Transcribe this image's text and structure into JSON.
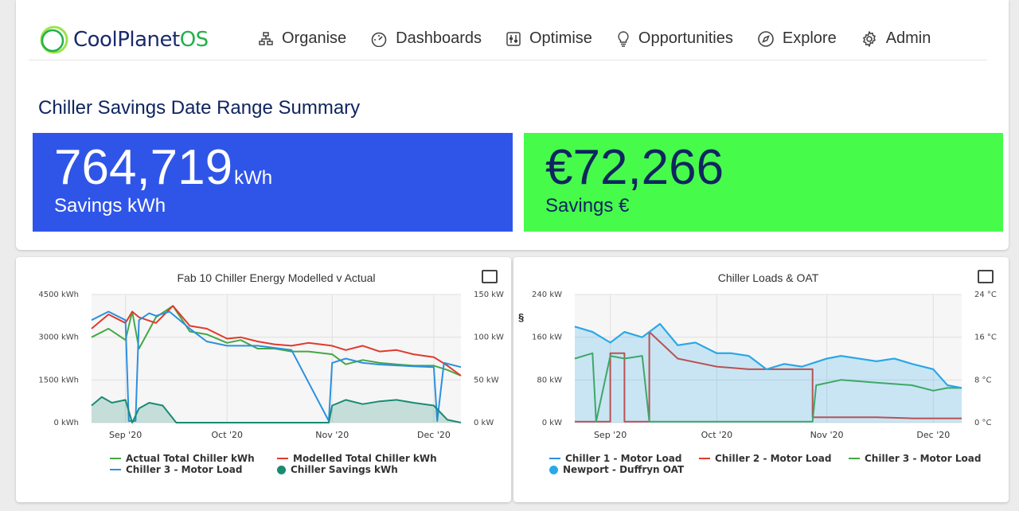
{
  "brand": {
    "name_part1": "CoolPlanet",
    "name_part2": "OS"
  },
  "nav": [
    {
      "label": "Organise",
      "icon": "sitemap-icon"
    },
    {
      "label": "Dashboards",
      "icon": "gauge-icon"
    },
    {
      "label": "Optimise",
      "icon": "sliders-icon"
    },
    {
      "label": "Opportunities",
      "icon": "lightbulb-icon"
    },
    {
      "label": "Explore",
      "icon": "compass-icon"
    },
    {
      "label": "Admin",
      "icon": "gear-icon"
    }
  ],
  "summary": {
    "title": "Chiller Savings Date Range Summary",
    "kwh": {
      "value": "764,719",
      "unit": "kWh",
      "label": "Savings kWh",
      "color": "#2f55e8"
    },
    "eur": {
      "value": "€72,266",
      "label": "Savings €",
      "color": "#47fb4b"
    }
  },
  "colors": {
    "green": "#43a843",
    "red": "#e03a2c",
    "blue": "#2c90e0",
    "teal": "#1a8a74",
    "oat": "#29a9e8"
  },
  "chart_left": {
    "legend": {
      "actual": "Actual Total Chiller kWh",
      "modelled": "Modelled Total Chiller kWh",
      "chiller3": "Chiller 3 - Motor Load",
      "savings": "Chiller Savings kWh"
    }
  },
  "chart_right": {
    "section_mark": "§",
    "legend": {
      "c1": "Chiller 1 - Motor Load",
      "c2": "Chiller 2 - Motor Load",
      "c3": "Chiller 3 - Motor Load",
      "oat": "Newport - Duffryn OAT"
    }
  },
  "chart_data": [
    {
      "type": "line",
      "title": "Fab 10 Chiller Energy Modelled v Actual",
      "x_ticks": [
        "Sep '20",
        "Oct '20",
        "Nov '20",
        "Dec '20"
      ],
      "x_range": [
        "2020-08-22",
        "2020-12-09"
      ],
      "y_left": {
        "ticks": [
          "0 kWh",
          "1500 kWh",
          "3000 kWh",
          "4500 kWh"
        ],
        "range": [
          0,
          4500
        ]
      },
      "y_right": {
        "ticks": [
          "0 kW",
          "50 kW",
          "100 kW",
          "150 kW"
        ],
        "range": [
          0,
          150
        ]
      },
      "grid": true,
      "legend_position": "bottom",
      "series": [
        {
          "name": "Actual Total Chiller kWh",
          "axis": "left",
          "color": "#43a843",
          "x": [
            "2020-08-22",
            "2020-08-27",
            "2020-09-01",
            "2020-09-03",
            "2020-09-05",
            "2020-09-10",
            "2020-09-15",
            "2020-09-20",
            "2020-09-25",
            "2020-10-01",
            "2020-10-05",
            "2020-10-10",
            "2020-10-15",
            "2020-10-20",
            "2020-10-25",
            "2020-11-01",
            "2020-11-05",
            "2020-11-10",
            "2020-11-15",
            "2020-11-20",
            "2020-11-25",
            "2020-12-01",
            "2020-12-05",
            "2020-12-09"
          ],
          "values": [
            3000,
            3300,
            2900,
            3900,
            2600,
            3700,
            4100,
            3200,
            3100,
            2800,
            2900,
            2600,
            2600,
            2500,
            2500,
            2400,
            2050,
            2200,
            2100,
            2050,
            2000,
            2000,
            1850,
            1650
          ]
        },
        {
          "name": "Modelled Total Chiller kWh",
          "axis": "left",
          "color": "#e03a2c",
          "x": [
            "2020-08-22",
            "2020-08-27",
            "2020-09-01",
            "2020-09-03",
            "2020-09-05",
            "2020-09-10",
            "2020-09-15",
            "2020-09-20",
            "2020-09-25",
            "2020-10-01",
            "2020-10-05",
            "2020-10-10",
            "2020-10-15",
            "2020-10-20",
            "2020-10-25",
            "2020-11-01",
            "2020-11-05",
            "2020-11-10",
            "2020-11-15",
            "2020-11-20",
            "2020-11-25",
            "2020-12-01",
            "2020-12-05",
            "2020-12-09"
          ],
          "values": [
            3300,
            3800,
            3500,
            3900,
            3700,
            3500,
            4100,
            3400,
            3300,
            2950,
            3000,
            2850,
            2750,
            2700,
            2800,
            2700,
            2550,
            2700,
            2500,
            2550,
            2400,
            2300,
            2000,
            1650
          ]
        },
        {
          "name": "Chiller 3 - Motor Load",
          "axis": "right",
          "color": "#2c90e0",
          "x": [
            "2020-08-22",
            "2020-08-27",
            "2020-09-01",
            "2020-09-02",
            "2020-09-04",
            "2020-09-05",
            "2020-09-08",
            "2020-09-10",
            "2020-09-14",
            "2020-09-20",
            "2020-09-25",
            "2020-10-01",
            "2020-10-10",
            "2020-10-20",
            "2020-10-31",
            "2020-11-01",
            "2020-11-05",
            "2020-11-10",
            "2020-11-15",
            "2020-11-20",
            "2020-11-25",
            "2020-12-01",
            "2020-12-02",
            "2020-12-04",
            "2020-12-09"
          ],
          "values": [
            120,
            130,
            120,
            2,
            2,
            120,
            128,
            125,
            130,
            110,
            95,
            90,
            90,
            85,
            2,
            70,
            75,
            70,
            68,
            67,
            66,
            65,
            2,
            70,
            65
          ]
        },
        {
          "name": "Chiller Savings kWh",
          "axis": "left",
          "color": "#1a8a74",
          "x": [
            "2020-08-22",
            "2020-08-25",
            "2020-08-28",
            "2020-09-01",
            "2020-09-03",
            "2020-09-05",
            "2020-09-08",
            "2020-09-12",
            "2020-09-16",
            "2020-09-20",
            "2020-09-25",
            "2020-10-01",
            "2020-10-10",
            "2020-10-20",
            "2020-10-31",
            "2020-11-01",
            "2020-11-05",
            "2020-11-10",
            "2020-11-15",
            "2020-11-20",
            "2020-11-25",
            "2020-12-01",
            "2020-12-05",
            "2020-12-09"
          ],
          "values": [
            600,
            900,
            700,
            800,
            0,
            500,
            700,
            600,
            0,
            0,
            0,
            0,
            0,
            0,
            0,
            600,
            800,
            650,
            750,
            800,
            700,
            600,
            100,
            0
          ]
        }
      ]
    },
    {
      "type": "line",
      "title": "Chiller Loads & OAT",
      "x_ticks": [
        "Sep '20",
        "Oct '20",
        "Nov '20",
        "Dec '20"
      ],
      "x_range": [
        "2020-08-22",
        "2020-12-09"
      ],
      "y_left": {
        "ticks": [
          "0 kW",
          "80 kW",
          "160 kW",
          "240 kW"
        ],
        "range": [
          0,
          240
        ]
      },
      "y_right": {
        "ticks": [
          "0 °C",
          "8 °C",
          "16 °C",
          "24 °C"
        ],
        "range": [
          0,
          24
        ]
      },
      "grid": true,
      "legend_position": "bottom",
      "series": [
        {
          "name": "Chiller 1 - Motor Load",
          "axis": "left",
          "color": "#2c90e0",
          "x": [
            "2020-08-22",
            "2020-08-27",
            "2020-09-01",
            "2020-09-05",
            "2020-09-10",
            "2020-09-15",
            "2020-09-20",
            "2020-09-25",
            "2020-10-01",
            "2020-10-05",
            "2020-10-10",
            "2020-10-15",
            "2020-10-20",
            "2020-10-25",
            "2020-11-01",
            "2020-11-05",
            "2020-11-10",
            "2020-11-15",
            "2020-11-20",
            "2020-11-25",
            "2020-12-01",
            "2020-12-05",
            "2020-12-09"
          ],
          "values": [
            180,
            170,
            150,
            170,
            160,
            185,
            145,
            150,
            130,
            130,
            125,
            100,
            110,
            105,
            120,
            125,
            120,
            115,
            120,
            110,
            100,
            70,
            65
          ]
        },
        {
          "name": "Chiller 2 - Motor Load",
          "axis": "left",
          "color": "#e03a2c",
          "x": [
            "2020-08-22",
            "2020-09-01",
            "2020-09-01",
            "2020-09-05",
            "2020-09-05",
            "2020-09-12",
            "2020-09-12",
            "2020-09-20",
            "2020-10-01",
            "2020-10-10",
            "2020-10-20",
            "2020-10-28",
            "2020-10-28",
            "2020-11-05",
            "2020-11-15",
            "2020-11-25",
            "2020-12-05",
            "2020-12-09"
          ],
          "values": [
            2,
            2,
            130,
            130,
            2,
            2,
            170,
            120,
            105,
            100,
            100,
            100,
            10,
            10,
            10,
            8,
            8,
            8
          ]
        },
        {
          "name": "Chiller 3 - Motor Load",
          "axis": "left",
          "color": "#43a843",
          "x": [
            "2020-08-22",
            "2020-08-27",
            "2020-08-28",
            "2020-09-01",
            "2020-09-05",
            "2020-09-10",
            "2020-09-12",
            "2020-09-15",
            "2020-09-20",
            "2020-10-01",
            "2020-10-15",
            "2020-10-28",
            "2020-10-29",
            "2020-11-05",
            "2020-11-15",
            "2020-11-25",
            "2020-12-01",
            "2020-12-05",
            "2020-12-09"
          ],
          "values": [
            120,
            130,
            2,
            125,
            120,
            125,
            2,
            2,
            2,
            2,
            2,
            2,
            70,
            80,
            75,
            70,
            60,
            65,
            65
          ]
        },
        {
          "name": "Newport - Duffryn OAT",
          "axis": "right",
          "color": "#29a9e8",
          "x": [
            "2020-08-22",
            "2020-08-27",
            "2020-09-01",
            "2020-09-05",
            "2020-09-10",
            "2020-09-15",
            "2020-09-20",
            "2020-09-25",
            "2020-10-01",
            "2020-10-05",
            "2020-10-10",
            "2020-10-15",
            "2020-10-20",
            "2020-10-25",
            "2020-11-01",
            "2020-11-05",
            "2020-11-10",
            "2020-11-15",
            "2020-11-20",
            "2020-11-25",
            "2020-12-01",
            "2020-12-05",
            "2020-12-09"
          ],
          "values": [
            18,
            17,
            15,
            17,
            16,
            18.5,
            14.5,
            15,
            13,
            13,
            12.5,
            10,
            11,
            10.5,
            12,
            12.5,
            12,
            11.5,
            12,
            11,
            10,
            7,
            6.5
          ]
        }
      ]
    }
  ]
}
